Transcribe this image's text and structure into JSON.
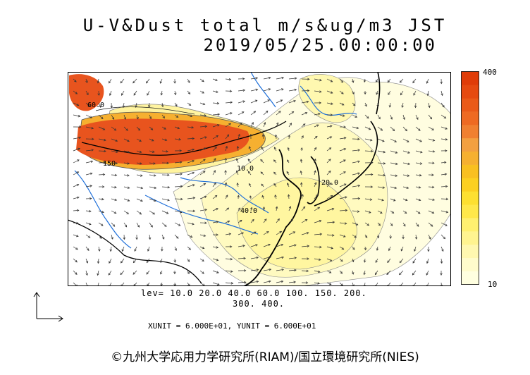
{
  "title_line1": "U-V&Dust total m/s&ug/m3 JST",
  "title_line2": "2019/05/25.00:00:00",
  "colorbar": {
    "max_label": "400",
    "min_label": "10",
    "colors": [
      "#ffffe0",
      "#fffccc",
      "#fff8b0",
      "#fff490",
      "#fff070",
      "#ffe84a",
      "#fde030",
      "#fcd020",
      "#f9c020",
      "#f6b030",
      "#f3a040",
      "#f08030",
      "#ee6a22",
      "#ea5a18",
      "#e64a10",
      "#e03c08"
    ]
  },
  "contour_levels_line1": "lev= 10.0 20.0 40.0 60.0 100. 150. 200.",
  "contour_levels_line2": "300. 400.",
  "units_text": "XUNIT = 6.000E+01, YUNIT = 6.000E+01",
  "contour_labels": [
    "60.0",
    "150",
    "10.0",
    "40.0",
    "20.0"
  ],
  "copyright": "©九州大学応用力学研究所(RIAM)/国立環境研究所(NIES)"
}
